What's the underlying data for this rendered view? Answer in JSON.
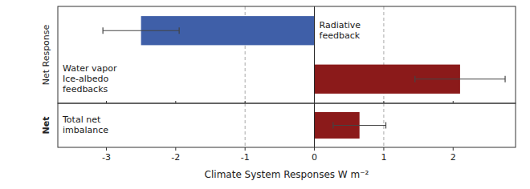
{
  "chart_data": [
    {
      "type": "bar",
      "orientation": "horizontal",
      "ylabel": "Net Response",
      "categories": [
        "Radiative\nfeedback",
        "Water vapor\nIce-albedo\nfeedbacks"
      ],
      "values": [
        -2.5,
        2.1
      ],
      "errors": [
        0.55,
        0.65
      ],
      "colors": [
        "#3f5fa8",
        "#8b1a1a"
      ],
      "xlim": [
        -3.7,
        2.9
      ],
      "xticks": [
        -3,
        -2,
        -1,
        0,
        1,
        2
      ],
      "reference_lines": [
        -1,
        1
      ],
      "tick_labels": false
    },
    {
      "type": "bar",
      "orientation": "horizontal",
      "xlabel": "Climate System Responses W m⁻²",
      "ylabel": "Net",
      "categories": [
        "Total net\nimbalance"
      ],
      "values": [
        0.65
      ],
      "errors": [
        0.38
      ],
      "color": "#8b1a1a",
      "xlim": [
        -3.7,
        2.9
      ],
      "xticks": [
        -3,
        -2,
        -1,
        0,
        1,
        2
      ],
      "reference_lines": [
        -1,
        1
      ],
      "tick_labels": "x"
    }
  ]
}
